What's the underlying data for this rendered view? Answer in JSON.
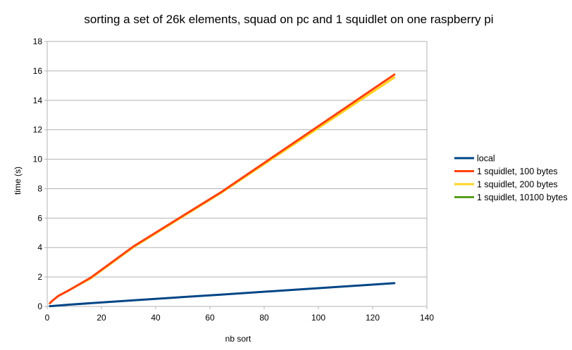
{
  "chart_data": {
    "type": "line",
    "title": "sorting a set of 26k elements, squad on pc and 1 squidlet on one raspberry pi",
    "xlabel": "nb sort",
    "ylabel": "time (s)",
    "xlim": [
      0,
      140
    ],
    "ylim": [
      0,
      18
    ],
    "x_ticks": [
      0,
      20,
      40,
      60,
      80,
      100,
      120,
      140
    ],
    "y_ticks": [
      0,
      2,
      4,
      6,
      8,
      10,
      12,
      14,
      16,
      18
    ],
    "grid": "horizontal",
    "legend_position": "right",
    "series": [
      {
        "name": "local",
        "color": "#004586",
        "x": [
          1,
          2,
          4,
          8,
          16,
          32,
          64,
          128
        ],
        "values": [
          0.02,
          0.03,
          0.06,
          0.12,
          0.22,
          0.42,
          0.8,
          1.58
        ]
      },
      {
        "name": "1 squidlet, 200 bytes",
        "color": "#ffd320",
        "x": [
          1,
          2,
          4,
          8,
          16,
          32,
          64,
          128
        ],
        "values": [
          0.22,
          0.4,
          0.7,
          1.1,
          1.9,
          4.05,
          7.7,
          15.55
        ]
      },
      {
        "name": "1 squidlet, 100 bytes",
        "color": "#ff420e",
        "x": [
          1,
          2,
          4,
          8,
          16,
          32,
          64,
          128
        ],
        "values": [
          0.22,
          0.4,
          0.7,
          1.1,
          1.95,
          4.1,
          7.75,
          15.75
        ]
      },
      {
        "name": "1 squidlet, 10100 bytes",
        "color": "#579d1c",
        "x": [],
        "values": []
      }
    ],
    "legend_order": [
      "local",
      "1 squidlet, 100 bytes",
      "1 squidlet, 200 bytes",
      "1 squidlet, 10100 bytes"
    ]
  }
}
